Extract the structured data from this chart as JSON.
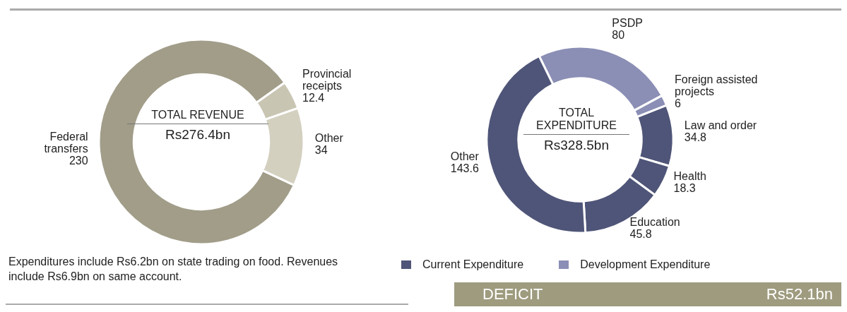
{
  "chart_data": [
    {
      "type": "donut",
      "categories": [
        "Federal transfers",
        "Provincial receipts",
        "Other"
      ],
      "values": [
        230,
        12.4,
        34
      ],
      "colors": [
        "#a19d89",
        "#c9c5b3",
        "#d4d0c0"
      ],
      "data_labels": true,
      "annotations": [
        "TOTAL REVENUE",
        "Rs276.4bn",
        "Expenditures include Rs6.2bn on state trading on food. Revenues include Rs6.9bn on same account."
      ]
    },
    {
      "type": "donut",
      "categories": [
        "PSDP",
        "Foreign assisted projects",
        "Law and order",
        "Health",
        "Education",
        "Other"
      ],
      "data_labels": true,
      "values": [
        80,
        6,
        34.8,
        18.3,
        45.8,
        143.6
      ],
      "colors": [
        "#8b8fb5",
        "#8b8fb5",
        "#4f5578",
        "#4f5578",
        "#4f5578",
        "#4f5578"
      ],
      "annotations": [
        "TOTAL EXPENDITURE",
        "Rs328.5bn",
        "DEFICIT",
        "Rs52.1bn",
        "Current Expenditure",
        "Development Expenditure"
      ]
    }
  ]
}
